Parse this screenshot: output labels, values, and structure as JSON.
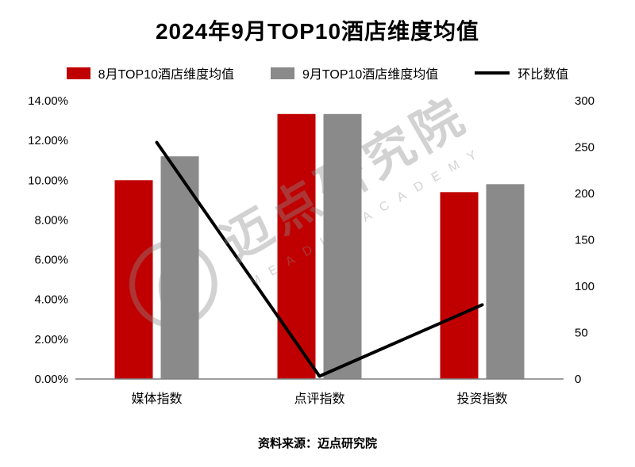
{
  "page": {
    "title": "2024年9月TOP10酒店维度均值",
    "source": "资料来源：迈点研究院"
  },
  "watermark": {
    "text": "迈点研究院",
    "subtext": "MEADIN ACADEMY"
  },
  "chart_data": {
    "type": "bar",
    "subtype": "grouped-bars-with-line",
    "categories": [
      "媒体指数",
      "点评指数",
      "投资指数"
    ],
    "series": [
      {
        "name": "8月TOP10酒店维度均值",
        "type": "bar",
        "axis": "left",
        "color": "#c00000",
        "values": [
          10.0,
          13.33,
          9.4
        ]
      },
      {
        "name": "9月TOP10酒店维度均值",
        "type": "bar",
        "axis": "left",
        "color": "#8a8a8a",
        "values": [
          11.2,
          13.33,
          9.8
        ]
      },
      {
        "name": "环比数值",
        "type": "line",
        "axis": "right",
        "color": "#000000",
        "values": [
          255,
          3,
          80
        ]
      }
    ],
    "left_axis": {
      "min": 0,
      "max": 14,
      "step": 2,
      "format": "percent",
      "tick_labels": [
        "0.00%",
        "2.00%",
        "4.00%",
        "6.00%",
        "8.00%",
        "10.00%",
        "12.00%",
        "14.00%"
      ]
    },
    "right_axis": {
      "min": 0,
      "max": 300,
      "step": 50,
      "tick_labels": [
        "0",
        "50",
        "100",
        "150",
        "200",
        "250",
        "300"
      ]
    },
    "grid": false,
    "legend_position": "top",
    "title": "2024年9月TOP10酒店维度均值"
  }
}
